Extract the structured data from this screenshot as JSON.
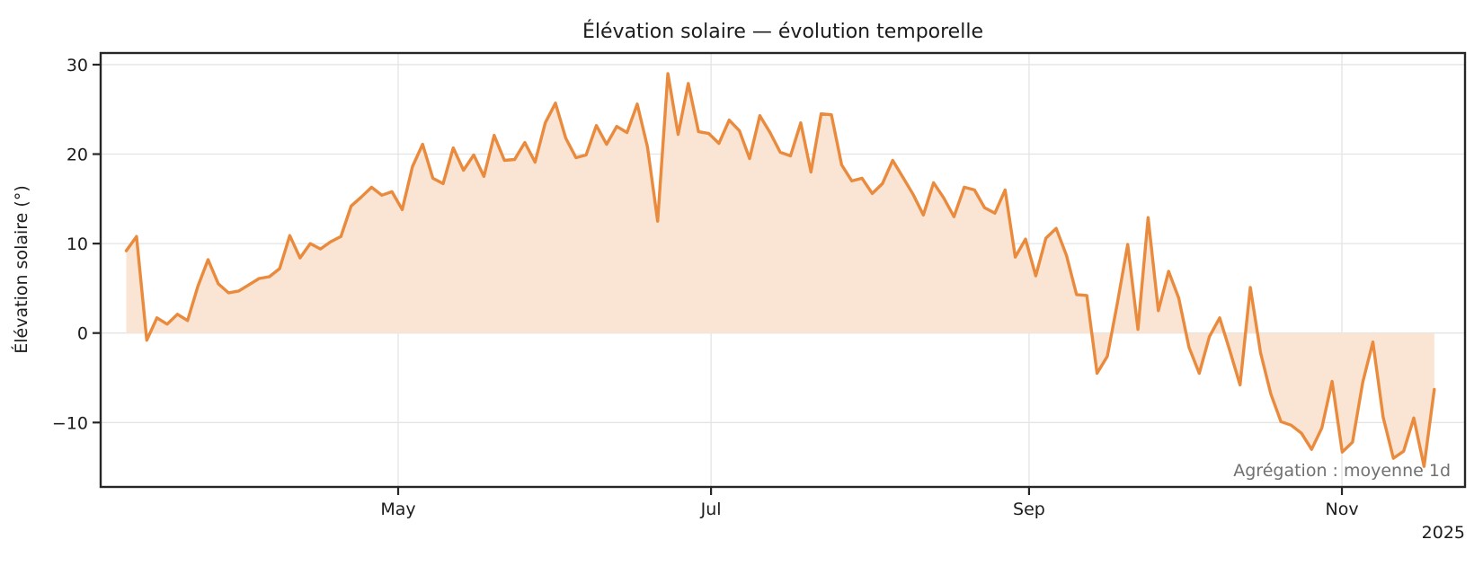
{
  "chart_data": {
    "type": "line",
    "title": "Élévation solaire — évolution temporelle",
    "ylabel": "Élévation solaire (°)",
    "xlabel": "",
    "annotation": "Agrégation : moyenne 1d",
    "aggregation": "moyenne 1d",
    "year_label": "2025",
    "legend": "none",
    "grid": true,
    "ylim": [
      -17.2,
      31.3
    ],
    "yticks": [
      {
        "value": 30,
        "label": "30"
      },
      {
        "value": 20,
        "label": "20"
      },
      {
        "value": 10,
        "label": "10"
      },
      {
        "value": 0,
        "label": "0"
      },
      {
        "value": -10,
        "label": "−10"
      }
    ],
    "xticks": [
      {
        "label": "May",
        "day_offset": 53
      },
      {
        "label": "Jul",
        "day_offset": 114
      },
      {
        "label": "Sep",
        "day_offset": 176
      },
      {
        "label": "Nov",
        "day_offset": 237
      }
    ],
    "span_days": 255,
    "x_domain_days": [
      -5,
      261
    ],
    "colors": {
      "line": "#e98a3d",
      "fill": "#fae5d4",
      "grid": "#e4e4e4",
      "spine": "#262626",
      "text": "#1c1c1c",
      "annotation": "#707070",
      "background": "#ffffff"
    },
    "series": [
      {
        "name": "Élévation solaire",
        "unit": "°",
        "start_date": "2025-03-09",
        "end_date": "2025-11-19",
        "step_days": 2,
        "values": [
          9.2,
          10.8,
          -0.8,
          1.7,
          1.0,
          2.1,
          1.4,
          5.2,
          8.2,
          5.5,
          4.5,
          4.7,
          5.4,
          6.1,
          6.3,
          7.2,
          10.9,
          8.4,
          10.0,
          9.4,
          10.2,
          10.8,
          14.2,
          15.2,
          16.3,
          15.4,
          15.8,
          13.8,
          18.6,
          21.1,
          17.3,
          16.7,
          20.7,
          18.2,
          19.9,
          17.5,
          22.1,
          19.3,
          19.4,
          21.3,
          19.1,
          23.5,
          25.7,
          21.8,
          19.6,
          19.9,
          23.2,
          21.1,
          23.1,
          22.4,
          25.6,
          20.8,
          12.5,
          29.0,
          22.2,
          27.9,
          22.5,
          22.3,
          21.2,
          23.8,
          22.6,
          19.5,
          24.3,
          22.4,
          20.2,
          19.8,
          23.5,
          18.0,
          24.5,
          24.4,
          18.8,
          17.0,
          17.3,
          15.6,
          16.7,
          19.3,
          17.4,
          15.5,
          13.2,
          16.8,
          15.1,
          13.0,
          16.3,
          16.0,
          14.0,
          13.4,
          16.0,
          8.5,
          10.5,
          6.4,
          10.6,
          11.7,
          8.7,
          4.3,
          4.2,
          -4.5,
          -2.6,
          3.4,
          9.9,
          0.4,
          12.9,
          2.5,
          6.9,
          3.9,
          -1.6,
          -4.5,
          -0.4,
          1.7,
          -2.0,
          -5.8,
          5.1,
          -2.2,
          -6.8,
          -9.9,
          -10.3,
          -11.2,
          -13.0,
          -10.6,
          -5.4,
          -13.3,
          -12.2,
          -5.5,
          -1.0,
          -9.4,
          -14.0,
          -13.2,
          -9.5,
          -14.9,
          -6.3
        ]
      }
    ]
  }
}
